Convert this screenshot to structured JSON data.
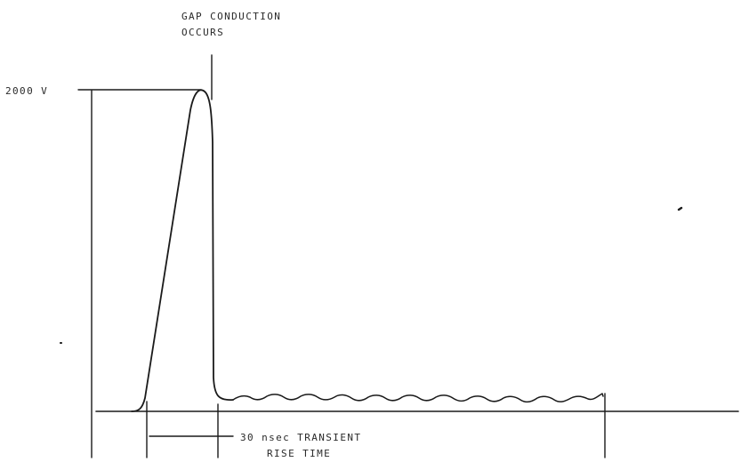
{
  "diagram": {
    "annotations": {
      "gap_conduction_line1": "GAP CONDUCTION",
      "gap_conduction_line2": "OCCURS",
      "peak_voltage": "2000 V",
      "rise_time_line1": "30 nsec TRANSIENT",
      "rise_time_line2": "RISE TIME"
    },
    "colors": {
      "ink": "#1a1a1a",
      "background": "#ffffff"
    }
  }
}
